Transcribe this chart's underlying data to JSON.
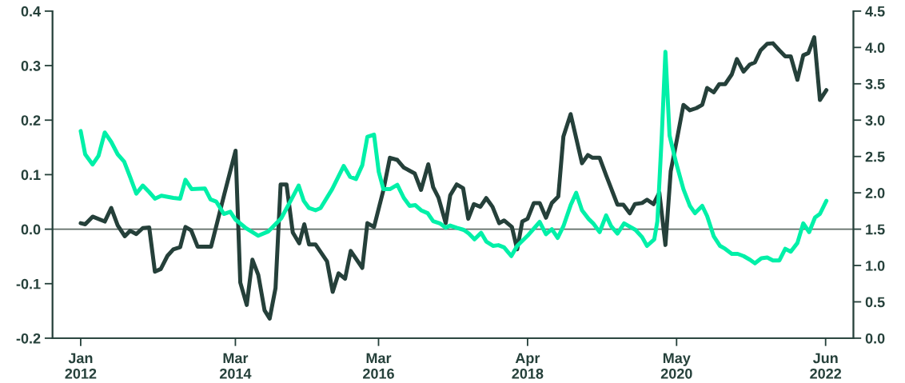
{
  "chart_data": {
    "type": "line",
    "xlim": [
      "2011-08-10",
      "2022-10-21"
    ],
    "xticks": [
      {
        "value": "2012-01",
        "label": "Jan\n2012"
      },
      {
        "value": "2014-03",
        "label": "Mar\n2014"
      },
      {
        "value": "2016-03",
        "label": "Mar\n2016"
      },
      {
        "value": "2018-04",
        "label": "Apr\n2018"
      },
      {
        "value": "2020-05",
        "label": "May\n2020"
      },
      {
        "value": "2022-06",
        "label": "Jun\n2022"
      }
    ],
    "ylim": [
      -0.2,
      0.4
    ],
    "yticks": [
      {
        "value": -0.2,
        "label": "-0.2"
      },
      {
        "value": -0.1,
        "label": "-0.1"
      },
      {
        "value": 0.0,
        "label": "0.0"
      },
      {
        "value": 0.1,
        "label": "0.1"
      },
      {
        "value": 0.2,
        "label": "0.2"
      },
      {
        "value": 0.3,
        "label": "0.3"
      },
      {
        "value": 0.4,
        "label": "0.4"
      }
    ],
    "y2lim": [
      0.0,
      4.5
    ],
    "y2ticks": [
      {
        "value": 0.0,
        "label": "0.0"
      },
      {
        "value": 0.5,
        "label": "0.5"
      },
      {
        "value": 1.0,
        "label": "1.0"
      },
      {
        "value": 1.5,
        "label": "1.5"
      },
      {
        "value": 2.0,
        "label": "2.0"
      },
      {
        "value": 2.5,
        "label": "2.5"
      },
      {
        "value": 3.0,
        "label": "3.0"
      },
      {
        "value": 3.5,
        "label": "3.5"
      },
      {
        "value": 4.0,
        "label": "4.0"
      },
      {
        "value": 4.5,
        "label": "4.5"
      }
    ],
    "grid": false,
    "marker": "none",
    "line_style": "solid",
    "ref_lines": [
      {
        "axis": "y",
        "value": 0.0,
        "label": null,
        "color": "#5f6b66"
      }
    ],
    "series": [
      {
        "color": "#25403a",
        "x": [
          "2012-01-01",
          "2012-01-24",
          "2012-03-02",
          "2012-05-03",
          "2012-06-05",
          "2012-07-08",
          "2012-08-13",
          "2012-09-09",
          "2012-10-11",
          "2012-11-13",
          "2012-12-16",
          "2013-01-14",
          "2013-02-13",
          "2013-03-19",
          "2013-04-18",
          "2013-05-23",
          "2013-06-19",
          "2013-07-18",
          "2013-08-20",
          "2013-10-28",
          "2014-01-04",
          "2014-03-02",
          "2014-03-26",
          "2014-04-28",
          "2014-05-27",
          "2014-06-26",
          "2014-07-28",
          "2014-08-23",
          "2014-09-22",
          "2014-10-18",
          "2014-11-17",
          "2014-12-19",
          "2015-01-21",
          "2015-02-16",
          "2015-03-12",
          "2015-04-14",
          "2015-06-12",
          "2015-07-11",
          "2015-08-10",
          "2015-09-12",
          "2015-10-11",
          "2015-12-09",
          "2016-01-04",
          "2016-02-07",
          "2016-03-26",
          "2016-04-28",
          "2016-06-05",
          "2016-07-08",
          "2016-09-02",
          "2016-10-04",
          "2016-11-10",
          "2016-12-05",
          "2017-01-01",
          "2017-02-07",
          "2017-03-02",
          "2017-04-04",
          "2017-05-07",
          "2017-06-02",
          "2017-07-01",
          "2017-08-03",
          "2017-09-02",
          "2017-10-04",
          "2017-11-07",
          "2017-12-02",
          "2018-01-11",
          "2018-02-07",
          "2018-03-05",
          "2018-04-01",
          "2018-05-03",
          "2018-06-02",
          "2018-07-04",
          "2018-08-03",
          "2018-09-05",
          "2018-10-01",
          "2018-11-07",
          "2019-01-04",
          "2019-02-03",
          "2019-02-27",
          "2019-04-04",
          "2019-05-07",
          "2019-07-04",
          "2019-08-03",
          "2019-09-05",
          "2019-10-01",
          "2019-11-07",
          "2019-12-02",
          "2020-01-04",
          "2020-02-03",
          "2020-03-05",
          "2020-04-01",
          "2020-05-03",
          "2020-06-05",
          "2020-07-08",
          "2020-08-10",
          "2020-09-09",
          "2020-10-04",
          "2020-11-07",
          "2020-12-05",
          "2021-01-04",
          "2021-02-07",
          "2021-03-05",
          "2021-04-08",
          "2021-05-10",
          "2021-06-05",
          "2021-07-04",
          "2021-08-07",
          "2021-09-05",
          "2021-10-08",
          "2021-11-07",
          "2021-12-05",
          "2022-01-08",
          "2022-02-07",
          "2022-03-05",
          "2022-04-04",
          "2022-05-03",
          "2022-06-05"
        ],
        "values": [
          0.011,
          0.009,
          0.023,
          0.014,
          0.039,
          0.007,
          -0.013,
          -0.003,
          -0.009,
          0.002,
          0.003,
          -0.078,
          -0.073,
          -0.049,
          -0.037,
          -0.033,
          0.004,
          -0.002,
          -0.032,
          -0.032,
          0.065,
          0.144,
          -0.098,
          -0.139,
          -0.056,
          -0.084,
          -0.149,
          -0.164,
          -0.108,
          0.082,
          0.082,
          -0.006,
          -0.026,
          0.009,
          -0.028,
          -0.028,
          -0.059,
          -0.115,
          -0.081,
          -0.091,
          -0.04,
          -0.071,
          0.011,
          0.004,
          0.072,
          0.131,
          0.127,
          0.113,
          0.102,
          0.072,
          0.119,
          0.077,
          0.058,
          0.011,
          0.062,
          0.082,
          0.075,
          0.019,
          0.046,
          0.041,
          0.057,
          0.041,
          0.011,
          0.016,
          0.004,
          -0.037,
          0.014,
          0.019,
          0.048,
          0.048,
          0.021,
          0.048,
          0.06,
          0.17,
          0.211,
          0.121,
          0.136,
          0.131,
          0.131,
          0.099,
          0.045,
          0.045,
          0.029,
          0.046,
          0.048,
          0.054,
          0.046,
          0.067,
          -0.029,
          0.106,
          0.165,
          0.228,
          0.218,
          0.222,
          0.228,
          0.259,
          0.251,
          0.266,
          0.266,
          0.284,
          0.312,
          0.289,
          0.302,
          0.306,
          0.328,
          0.34,
          0.341,
          0.328,
          0.317,
          0.317,
          0.274,
          0.319,
          0.323,
          0.352,
          0.237,
          0.255
        ]
      },
      {
        "color": "#00f0a8",
        "axis": "y2",
        "x": [
          "2012-01-01",
          "2012-01-24",
          "2012-03-02",
          "2012-04-01",
          "2012-05-03",
          "2012-06-05",
          "2012-07-08",
          "2012-08-10",
          "2012-09-09",
          "2012-10-11",
          "2012-11-13",
          "2012-12-16",
          "2013-01-14",
          "2013-02-16",
          "2013-04-18",
          "2013-05-23",
          "2013-06-19",
          "2013-07-21",
          "2013-09-26",
          "2013-10-25",
          "2013-11-23",
          "2014-01-01",
          "2014-02-03",
          "2014-03-02",
          "2014-04-21",
          "2014-06-26",
          "2014-08-17",
          "2014-10-21",
          "2014-12-12",
          "2015-01-18",
          "2015-02-13",
          "2015-03-12",
          "2015-04-14",
          "2015-05-10",
          "2015-07-08",
          "2015-09-05",
          "2015-10-08",
          "2015-11-07",
          "2015-12-09",
          "2016-01-04",
          "2016-02-07",
          "2016-03-02",
          "2016-03-26",
          "2016-04-28",
          "2016-06-05",
          "2016-07-08",
          "2016-08-07",
          "2016-09-05",
          "2016-10-04",
          "2016-11-07",
          "2016-12-05",
          "2017-01-08",
          "2017-02-07",
          "2017-03-02",
          "2017-04-04",
          "2017-05-10",
          "2017-06-05",
          "2017-07-04",
          "2017-08-07",
          "2017-09-02",
          "2017-10-08",
          "2017-11-03",
          "2017-12-02",
          "2018-01-08",
          "2018-02-07",
          "2018-04-01",
          "2018-06-02",
          "2018-07-04",
          "2018-08-03",
          "2018-09-02",
          "2018-10-01",
          "2018-11-07",
          "2018-12-05",
          "2019-01-04",
          "2019-02-07",
          "2019-03-02",
          "2019-04-04",
          "2019-05-07",
          "2019-06-02",
          "2019-07-04",
          "2019-08-07",
          "2019-10-04",
          "2019-11-07",
          "2019-12-02",
          "2020-01-08",
          "2020-01-24",
          "2020-02-16",
          "2020-03-05",
          "2020-03-26",
          "2020-04-28",
          "2020-06-05",
          "2020-07-08",
          "2020-08-03",
          "2020-09-09",
          "2020-10-04",
          "2020-11-07",
          "2020-12-09",
          "2021-01-04",
          "2021-02-07",
          "2021-03-09",
          "2021-04-08",
          "2021-05-10",
          "2021-06-05",
          "2021-07-08",
          "2021-08-07",
          "2021-09-05",
          "2021-10-08",
          "2021-11-07",
          "2021-12-05",
          "2022-01-08",
          "2022-02-07",
          "2022-03-09",
          "2022-04-08",
          "2022-05-03",
          "2022-06-05"
        ],
        "values": [
          2.85,
          2.53,
          2.39,
          2.51,
          2.83,
          2.7,
          2.53,
          2.43,
          2.22,
          1.99,
          2.1,
          2.01,
          1.92,
          1.96,
          1.93,
          1.92,
          2.18,
          2.05,
          2.06,
          1.91,
          1.88,
          1.71,
          1.74,
          1.63,
          1.52,
          1.41,
          1.47,
          1.65,
          1.91,
          2.1,
          1.89,
          1.79,
          1.76,
          1.79,
          2.05,
          2.37,
          2.22,
          2.19,
          2.38,
          2.77,
          2.8,
          2.29,
          2.05,
          2.05,
          2.11,
          1.93,
          1.82,
          1.83,
          1.76,
          1.72,
          1.61,
          1.58,
          1.52,
          1.55,
          1.52,
          1.49,
          1.44,
          1.36,
          1.45,
          1.33,
          1.27,
          1.28,
          1.25,
          1.13,
          1.27,
          1.41,
          1.6,
          1.43,
          1.5,
          1.38,
          1.54,
          1.83,
          2.0,
          1.76,
          1.64,
          1.58,
          1.46,
          1.69,
          1.54,
          1.44,
          1.58,
          1.49,
          1.39,
          1.27,
          1.36,
          1.61,
          2.82,
          3.94,
          2.79,
          2.42,
          2.05,
          1.82,
          1.72,
          1.82,
          1.68,
          1.4,
          1.27,
          1.23,
          1.16,
          1.16,
          1.13,
          1.08,
          1.03,
          1.1,
          1.11,
          1.07,
          1.07,
          1.23,
          1.19,
          1.31,
          1.58,
          1.46,
          1.66,
          1.71,
          1.89
        ]
      }
    ]
  }
}
